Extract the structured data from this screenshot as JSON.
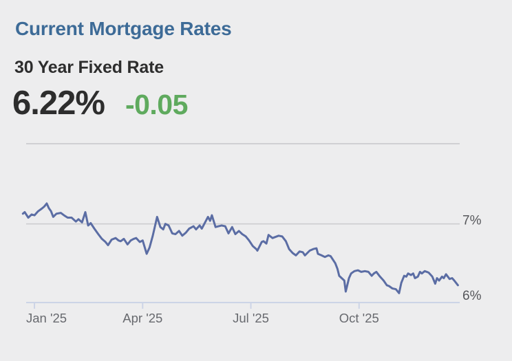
{
  "card": {
    "title": "Current Mortgage Rates",
    "product": "30 Year Fixed Rate",
    "rate": "6.22%",
    "change": "-0.05",
    "change_direction": "down"
  },
  "colors": {
    "background": "#ededee",
    "title_blue": "#3d6b97",
    "text_dark": "#2d2d2d",
    "change_green": "#5faa5e",
    "line_blue": "#5b6da4",
    "gridline_gray": "#cbcbce",
    "top_border_gray": "#d0d0d3",
    "axis_periwinkle": "#ccd4e6",
    "y_label_gray": "#55565a",
    "x_label_gray": "#67696e"
  },
  "chart_data": {
    "type": "line",
    "title": "",
    "xlabel": "",
    "ylabel": "",
    "legend": "none",
    "grid": "horizontal-only",
    "x_unit": "months since 2025-01-01",
    "xlim_months": [
      -0.23,
      11.79
    ],
    "ylim": [
      6,
      8.02
    ],
    "y_gridlines": [
      {
        "value": 8.02,
        "label": ""
      },
      {
        "value": 7,
        "label": "7%"
      }
    ],
    "y_axis": {
      "value": 6,
      "label": "6%"
    },
    "x_ticks": [
      {
        "m": 0,
        "label": "Jan '25"
      },
      {
        "m": 3,
        "label": "Apr '25"
      },
      {
        "m": 6,
        "label": "Jul '25"
      },
      {
        "m": 9,
        "label": "Oct '25"
      }
    ],
    "series": [
      {
        "name": "30 Year Fixed Rate",
        "points": [
          [
            -0.32,
            7.13
          ],
          [
            -0.27,
            7.15
          ],
          [
            -0.17,
            7.08
          ],
          [
            -0.08,
            7.12
          ],
          [
            0,
            7.11
          ],
          [
            0.1,
            7.16
          ],
          [
            0.19,
            7.19
          ],
          [
            0.27,
            7.22
          ],
          [
            0.34,
            7.26
          ],
          [
            0.4,
            7.2
          ],
          [
            0.46,
            7.16
          ],
          [
            0.52,
            7.09
          ],
          [
            0.61,
            7.13
          ],
          [
            0.73,
            7.14
          ],
          [
            0.82,
            7.11
          ],
          [
            0.92,
            7.08
          ],
          [
            1.03,
            7.08
          ],
          [
            1.15,
            7.03
          ],
          [
            1.22,
            7.06
          ],
          [
            1.32,
            7.02
          ],
          [
            1.41,
            7.15
          ],
          [
            1.49,
            6.98
          ],
          [
            1.56,
            7.01
          ],
          [
            1.66,
            6.94
          ],
          [
            1.77,
            6.87
          ],
          [
            1.87,
            6.81
          ],
          [
            1.97,
            6.77
          ],
          [
            2.04,
            6.73
          ],
          [
            2.14,
            6.8
          ],
          [
            2.25,
            6.82
          ],
          [
            2.33,
            6.79
          ],
          [
            2.39,
            6.78
          ],
          [
            2.48,
            6.81
          ],
          [
            2.58,
            6.74
          ],
          [
            2.67,
            6.79
          ],
          [
            2.75,
            6.81
          ],
          [
            2.82,
            6.82
          ],
          [
            2.92,
            6.77
          ],
          [
            3,
            6.79
          ],
          [
            3.11,
            6.62
          ],
          [
            3.19,
            6.7
          ],
          [
            3.28,
            6.85
          ],
          [
            3.4,
            7.09
          ],
          [
            3.49,
            6.96
          ],
          [
            3.57,
            6.93
          ],
          [
            3.63,
            7
          ],
          [
            3.72,
            6.98
          ],
          [
            3.82,
            6.88
          ],
          [
            3.91,
            6.87
          ],
          [
            4.01,
            6.91
          ],
          [
            4.1,
            6.85
          ],
          [
            4.2,
            6.89
          ],
          [
            4.29,
            6.94
          ],
          [
            4.41,
            6.97
          ],
          [
            4.48,
            6.93
          ],
          [
            4.58,
            6.98
          ],
          [
            4.64,
            6.94
          ],
          [
            4.73,
            7.02
          ],
          [
            4.81,
            7.09
          ],
          [
            4.87,
            7.04
          ],
          [
            4.92,
            7.11
          ],
          [
            5.02,
            6.96
          ],
          [
            5.1,
            6.97
          ],
          [
            5.19,
            6.98
          ],
          [
            5.29,
            6.97
          ],
          [
            5.38,
            6.88
          ],
          [
            5.48,
            6.96
          ],
          [
            5.57,
            6.87
          ],
          [
            5.67,
            6.91
          ],
          [
            5.76,
            6.87
          ],
          [
            5.86,
            6.84
          ],
          [
            5.95,
            6.79
          ],
          [
            6.05,
            6.72
          ],
          [
            6.15,
            6.68
          ],
          [
            6.18,
            6.66
          ],
          [
            6.3,
            6.77
          ],
          [
            6.35,
            6.78
          ],
          [
            6.43,
            6.75
          ],
          [
            6.49,
            6.86
          ],
          [
            6.6,
            6.82
          ],
          [
            6.77,
            6.85
          ],
          [
            6.87,
            6.84
          ],
          [
            6.97,
            6.78
          ],
          [
            7.06,
            6.68
          ],
          [
            7.16,
            6.63
          ],
          [
            7.25,
            6.6
          ],
          [
            7.35,
            6.65
          ],
          [
            7.44,
            6.64
          ],
          [
            7.5,
            6.6
          ],
          [
            7.63,
            6.66
          ],
          [
            7.73,
            6.68
          ],
          [
            7.82,
            6.69
          ],
          [
            7.86,
            6.62
          ],
          [
            7.96,
            6.6
          ],
          [
            8.05,
            6.58
          ],
          [
            8.15,
            6.6
          ],
          [
            8.21,
            6.59
          ],
          [
            8.34,
            6.5
          ],
          [
            8.4,
            6.43
          ],
          [
            8.45,
            6.34
          ],
          [
            8.59,
            6.28
          ],
          [
            8.63,
            6.14
          ],
          [
            8.72,
            6.31
          ],
          [
            8.78,
            6.37
          ],
          [
            8.87,
            6.4
          ],
          [
            8.97,
            6.41
          ],
          [
            9.06,
            6.39
          ],
          [
            9.16,
            6.4
          ],
          [
            9.26,
            6.39
          ],
          [
            9.35,
            6.34
          ],
          [
            9.41,
            6.37
          ],
          [
            9.48,
            6.39
          ],
          [
            9.58,
            6.33
          ],
          [
            9.68,
            6.28
          ],
          [
            9.77,
            6.22
          ],
          [
            9.83,
            6.21
          ],
          [
            9.92,
            6.18
          ],
          [
            10.02,
            6.17
          ],
          [
            10.11,
            6.12
          ],
          [
            10.17,
            6.25
          ],
          [
            10.25,
            6.34
          ],
          [
            10.31,
            6.33
          ],
          [
            10.36,
            6.37
          ],
          [
            10.44,
            6.35
          ],
          [
            10.5,
            6.37
          ],
          [
            10.55,
            6.31
          ],
          [
            10.63,
            6.33
          ],
          [
            10.69,
            6.39
          ],
          [
            10.74,
            6.37
          ],
          [
            10.82,
            6.4
          ],
          [
            10.88,
            6.39
          ],
          [
            10.93,
            6.38
          ],
          [
            11.03,
            6.33
          ],
          [
            11.11,
            6.24
          ],
          [
            11.16,
            6.31
          ],
          [
            11.22,
            6.28
          ],
          [
            11.3,
            6.33
          ],
          [
            11.35,
            6.31
          ],
          [
            11.41,
            6.36
          ],
          [
            11.51,
            6.3
          ],
          [
            11.58,
            6.31
          ],
          [
            11.64,
            6.28
          ],
          [
            11.74,
            6.22
          ]
        ]
      }
    ]
  }
}
